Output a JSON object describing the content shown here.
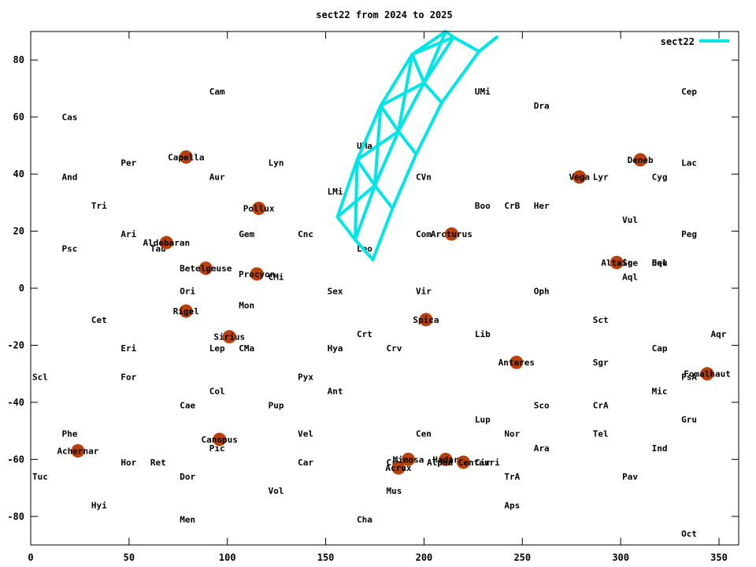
{
  "chart_data": {
    "type": "scatter",
    "title": "sect22 from 2024 to 2025",
    "xlabel": "",
    "ylabel": "",
    "xlim": [
      0,
      360
    ],
    "ylim": [
      -90,
      90
    ],
    "xticks": [
      0,
      50,
      100,
      150,
      200,
      250,
      300,
      350
    ],
    "yticks": [
      -80,
      -60,
      -40,
      -20,
      0,
      20,
      40,
      60,
      80
    ],
    "grid": false,
    "legend": {
      "position": "top-right",
      "entries": [
        {
          "name": "sect22",
          "color": "#00e5e5"
        }
      ]
    },
    "colors": {
      "star_marker": "#b8400c",
      "sector": "#00e5e5"
    },
    "constellations": [
      {
        "label": "Cam",
        "x": 90,
        "y": 69
      },
      {
        "label": "Cas",
        "x": 15,
        "y": 60
      },
      {
        "label": "UMi",
        "x": 225,
        "y": 69
      },
      {
        "label": "Dra",
        "x": 255,
        "y": 64
      },
      {
        "label": "Cep",
        "x": 330,
        "y": 69
      },
      {
        "label": "UMa",
        "x": 165,
        "y": 50
      },
      {
        "label": "Per",
        "x": 45,
        "y": 44
      },
      {
        "label": "Lyn",
        "x": 120,
        "y": 44
      },
      {
        "label": "Lac",
        "x": 330,
        "y": 44
      },
      {
        "label": "And",
        "x": 15,
        "y": 39
      },
      {
        "label": "Aur",
        "x": 90,
        "y": 39
      },
      {
        "label": "CVn",
        "x": 195,
        "y": 39
      },
      {
        "label": "Lyr",
        "x": 285,
        "y": 39
      },
      {
        "label": "Cyg",
        "x": 315,
        "y": 39
      },
      {
        "label": "LMi",
        "x": 150,
        "y": 34
      },
      {
        "label": "Tri",
        "x": 30,
        "y": 29
      },
      {
        "label": "Boo",
        "x": 225,
        "y": 29
      },
      {
        "label": "CrB",
        "x": 240,
        "y": 29
      },
      {
        "label": "Her",
        "x": 255,
        "y": 29
      },
      {
        "label": "Vul",
        "x": 300,
        "y": 24
      },
      {
        "label": "Ari",
        "x": 45,
        "y": 19
      },
      {
        "label": "Gem",
        "x": 105,
        "y": 19
      },
      {
        "label": "Cnc",
        "x": 135,
        "y": 19
      },
      {
        "label": "Com",
        "x": 195,
        "y": 19
      },
      {
        "label": "Peg",
        "x": 330,
        "y": 19
      },
      {
        "label": "Psc",
        "x": 15,
        "y": 14
      },
      {
        "label": "Tau",
        "x": 60,
        "y": 14
      },
      {
        "label": "Leo",
        "x": 165,
        "y": 14
      },
      {
        "label": "Sge",
        "x": 300,
        "y": 9
      },
      {
        "label": "Del",
        "x": 315,
        "y": 9
      },
      {
        "label": "Equ",
        "x": 315,
        "y": 9
      },
      {
        "label": "CMi",
        "x": 120,
        "y": 4
      },
      {
        "label": "Aql",
        "x": 300,
        "y": 4
      },
      {
        "label": "Ori",
        "x": 75,
        "y": -1
      },
      {
        "label": "Sex",
        "x": 150,
        "y": -1
      },
      {
        "label": "Vir",
        "x": 195,
        "y": -1
      },
      {
        "label": "Oph",
        "x": 255,
        "y": -1
      },
      {
        "label": "Mon",
        "x": 105,
        "y": -6
      },
      {
        "label": "Cet",
        "x": 30,
        "y": -11
      },
      {
        "label": "Sct",
        "x": 285,
        "y": -11
      },
      {
        "label": "Crt",
        "x": 165,
        "y": -16
      },
      {
        "label": "Lib",
        "x": 225,
        "y": -16
      },
      {
        "label": "Aqr",
        "x": 345,
        "y": -16
      },
      {
        "label": "Eri",
        "x": 45,
        "y": -21
      },
      {
        "label": "Lep",
        "x": 90,
        "y": -21
      },
      {
        "label": "CMa",
        "x": 105,
        "y": -21
      },
      {
        "label": "Hya",
        "x": 150,
        "y": -21
      },
      {
        "label": "Crv",
        "x": 180,
        "y": -21
      },
      {
        "label": "Cap",
        "x": 315,
        "y": -21
      },
      {
        "label": "Sgr",
        "x": 285,
        "y": -26
      },
      {
        "label": "Scl",
        "x": 0,
        "y": -31
      },
      {
        "label": "For",
        "x": 45,
        "y": -31
      },
      {
        "label": "Pyx",
        "x": 135,
        "y": -31
      },
      {
        "label": "PsA",
        "x": 330,
        "y": -31
      },
      {
        "label": "Col",
        "x": 90,
        "y": -36
      },
      {
        "label": "Ant",
        "x": 150,
        "y": -36
      },
      {
        "label": "Mic",
        "x": 315,
        "y": -36
      },
      {
        "label": "Cae",
        "x": 75,
        "y": -41
      },
      {
        "label": "Pup",
        "x": 120,
        "y": -41
      },
      {
        "label": "Sco",
        "x": 255,
        "y": -41
      },
      {
        "label": "CrA",
        "x": 285,
        "y": -41
      },
      {
        "label": "Lup",
        "x": 225,
        "y": -46
      },
      {
        "label": "Gru",
        "x": 330,
        "y": -46
      },
      {
        "label": "Phe",
        "x": 15,
        "y": -51
      },
      {
        "label": "Vel",
        "x": 135,
        "y": -51
      },
      {
        "label": "Cen",
        "x": 195,
        "y": -51
      },
      {
        "label": "Nor",
        "x": 240,
        "y": -51
      },
      {
        "label": "Tel",
        "x": 285,
        "y": -51
      },
      {
        "label": "Pic",
        "x": 90,
        "y": -56
      },
      {
        "label": "Ara",
        "x": 255,
        "y": -56
      },
      {
        "label": "Ind",
        "x": 315,
        "y": -56
      },
      {
        "label": "Hor",
        "x": 45,
        "y": -61
      },
      {
        "label": "Ret",
        "x": 60,
        "y": -61
      },
      {
        "label": "Car",
        "x": 135,
        "y": -61
      },
      {
        "label": "Cru",
        "x": 180,
        "y": -61
      },
      {
        "label": "Cir",
        "x": 225,
        "y": -61
      },
      {
        "label": "Tuc",
        "x": 0,
        "y": -66
      },
      {
        "label": "Dor",
        "x": 75,
        "y": -66
      },
      {
        "label": "TrA",
        "x": 240,
        "y": -66
      },
      {
        "label": "Pav",
        "x": 300,
        "y": -66
      },
      {
        "label": "Vol",
        "x": 120,
        "y": -71
      },
      {
        "label": "Mus",
        "x": 180,
        "y": -71
      },
      {
        "label": "Hyi",
        "x": 30,
        "y": -76
      },
      {
        "label": "Aps",
        "x": 240,
        "y": -76
      },
      {
        "label": "Men",
        "x": 75,
        "y": -81
      },
      {
        "label": "Cha",
        "x": 165,
        "y": -81
      },
      {
        "label": "Oct",
        "x": 330,
        "y": -86
      }
    ],
    "stars": [
      {
        "label": "Capella",
        "x": 79,
        "y": 46
      },
      {
        "label": "Deneb",
        "x": 310,
        "y": 45
      },
      {
        "label": "Vega",
        "x": 279,
        "y": 39
      },
      {
        "label": "Pollux",
        "x": 116,
        "y": 28
      },
      {
        "label": "Arcturus",
        "x": 214,
        "y": 19
      },
      {
        "label": "Aldebaran",
        "x": 69,
        "y": 16
      },
      {
        "label": "Altair",
        "x": 298,
        "y": 9
      },
      {
        "label": "Betelgeuse",
        "x": 89,
        "y": 7
      },
      {
        "label": "Procyon",
        "x": 115,
        "y": 5
      },
      {
        "label": "Rigel",
        "x": 79,
        "y": -8
      },
      {
        "label": "Spica",
        "x": 201,
        "y": -11
      },
      {
        "label": "Sirius",
        "x": 101,
        "y": -17
      },
      {
        "label": "Antares",
        "x": 247,
        "y": -26
      },
      {
        "label": "Fomalhaut",
        "x": 344,
        "y": -30
      },
      {
        "label": "Canopus",
        "x": 96,
        "y": -53
      },
      {
        "label": "Achernar",
        "x": 24,
        "y": -57
      },
      {
        "label": "Mimosa",
        "x": 192,
        "y": -60
      },
      {
        "label": "Hadar",
        "x": 211,
        "y": -60
      },
      {
        "label": "Alpha Centauri",
        "x": 220,
        "y": -61
      },
      {
        "label": "Acrux",
        "x": 187,
        "y": -63
      }
    ],
    "sector": {
      "name": "sect22",
      "corners": {
        "left": [
          [
            156,
            25
          ],
          [
            166,
            45
          ],
          [
            178,
            64
          ],
          [
            194,
            82
          ],
          [
            211,
            90
          ]
        ],
        "mid": [
          [
            165,
            17
          ],
          [
            175,
            36
          ],
          [
            187,
            55
          ],
          [
            200,
            72
          ],
          [
            215,
            88
          ]
        ],
        "right": [
          [
            174,
            10
          ],
          [
            184,
            28
          ],
          [
            196,
            47
          ],
          [
            209,
            65
          ],
          [
            228,
            83
          ],
          [
            237,
            88
          ]
        ]
      }
    }
  }
}
